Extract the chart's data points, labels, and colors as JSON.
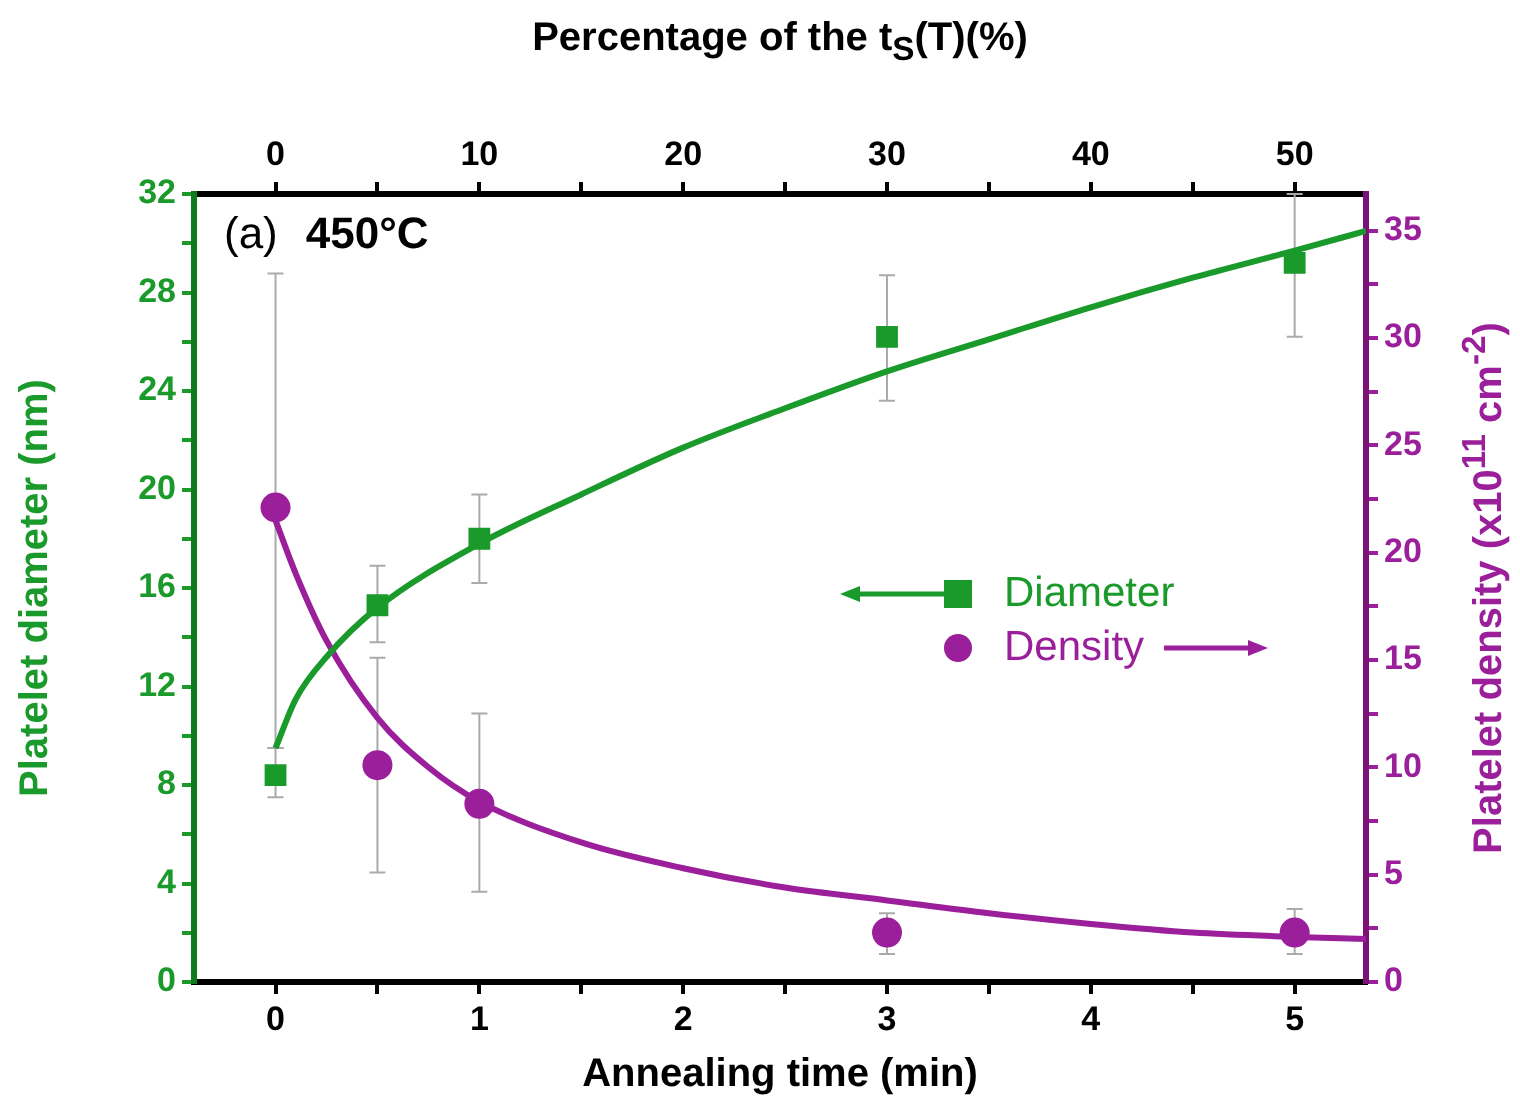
{
  "chart_data": {
    "type": "scatter",
    "xlabel": "Annealing time (min)",
    "ylabel": "Platelet diameter (nm)",
    "y2label": "Platelet density (x10$^{11}$ cm$^{-2}$)",
    "x2label": "Percentage of the t$_{S}$(T)(%)",
    "annotations": [
      "(a)",
      "450°C"
    ],
    "xlim": [
      -0.4,
      5.35
    ],
    "xticks": [
      0,
      {
        "value": 0.5,
        "label": null
      },
      1,
      {
        "value": 1.5,
        "label": null
      },
      2,
      {
        "value": 2.5,
        "label": null
      },
      3,
      {
        "value": 3.5,
        "label": null
      },
      4,
      {
        "value": 4.5,
        "label": null
      },
      5
    ],
    "x2lim": [
      -4,
      53.5
    ],
    "x2ticks": [
      0,
      {
        "value": 5,
        "label": null
      },
      10,
      {
        "value": 15,
        "label": null
      },
      20,
      {
        "value": 25,
        "label": null
      },
      30,
      {
        "value": 35,
        "label": null
      },
      40,
      {
        "value": 45,
        "label": null
      },
      50
    ],
    "ylim": [
      0,
      32
    ],
    "yticks": [
      0,
      {
        "value": 2,
        "label": null
      },
      4,
      {
        "value": 6,
        "label": null
      },
      8,
      {
        "value": 10,
        "label": null
      },
      12,
      {
        "value": 14,
        "label": null
      },
      16,
      {
        "value": 18,
        "label": null
      },
      20,
      {
        "value": 22,
        "label": null
      },
      24,
      {
        "value": 26,
        "label": null
      },
      28,
      {
        "value": 30,
        "label": null
      },
      32
    ],
    "y2lim": [
      0,
      36.7
    ],
    "y2ticks": [
      0,
      {
        "value": 2.5,
        "label": null
      },
      5,
      {
        "value": 7.5,
        "label": null
      },
      10,
      {
        "value": 12.5,
        "label": null
      },
      15,
      {
        "value": 17.5,
        "label": null
      },
      20,
      {
        "value": 22.5,
        "label": null
      },
      25,
      {
        "value": 27.5,
        "label": null
      },
      30,
      {
        "value": 32.5,
        "label": null
      },
      35
    ],
    "grid": false,
    "legend": "right",
    "series": [
      {
        "name": "Diameter",
        "type": "scatter",
        "marker": "square",
        "color": "#1a9a2a",
        "x": [
          0,
          0.5,
          1,
          3,
          5
        ],
        "values": [
          8.4,
          15.3,
          18,
          26.2,
          29.2
        ],
        "errors": [
          [
            7.5,
            9.5
          ],
          [
            13.8,
            16.9
          ],
          [
            16.2,
            19.8
          ],
          [
            23.6,
            28.7
          ],
          [
            26.2,
            32
          ]
        ]
      },
      {
        "name": "Density",
        "type": "scatter",
        "marker": "circle",
        "axis": "y2",
        "color": "#9b1f9b",
        "x": [
          0,
          0.5,
          1,
          3,
          5
        ],
        "values": [
          22.1,
          10.1,
          8.3,
          2.3,
          2.3
        ],
        "errors": [
          [
            10.9,
            33
          ],
          [
            5.1,
            15.1
          ],
          [
            4.2,
            12.5
          ],
          [
            1.3,
            3.2
          ],
          [
            1.3,
            3.4
          ]
        ]
      },
      {
        "type": "line",
        "marker": "none",
        "color": "#1a9a2a",
        "x": [
          0,
          0.1,
          0.25,
          0.5,
          1,
          1.5,
          2,
          2.5,
          3,
          3.5,
          4,
          4.5,
          5,
          5.35
        ],
        "values": [
          9.5,
          11.5,
          13.2,
          15.2,
          17.8,
          19.8,
          21.7,
          23.3,
          24.8,
          26.1,
          27.4,
          28.6,
          29.7,
          30.5
        ]
      },
      {
        "type": "line",
        "marker": "none",
        "axis": "y2",
        "color": "#9b1f9b",
        "x": [
          0,
          0.1,
          0.25,
          0.5,
          0.75,
          1,
          1.5,
          2,
          2.5,
          3,
          3.5,
          4,
          4.5,
          5,
          5.35
        ],
        "values": [
          21.5,
          19,
          15.9,
          12.3,
          10,
          8.4,
          6.5,
          5.3,
          4.4,
          3.8,
          3.2,
          2.7,
          2.3,
          2.1,
          2
        ]
      }
    ]
  }
}
